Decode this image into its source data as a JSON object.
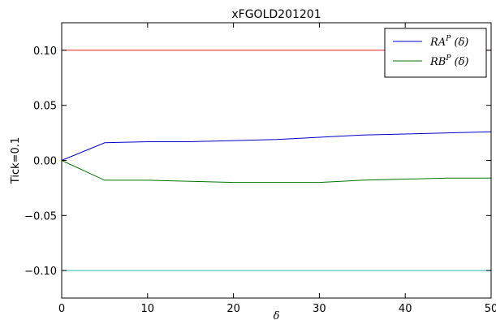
{
  "chart_data": {
    "type": "line",
    "title": "xFGOLD201201",
    "xlabel": "δ",
    "ylabel": "Tick=0.1",
    "xlim": [
      0,
      50
    ],
    "ylim": [
      -0.125,
      0.125
    ],
    "xticks": [
      0,
      10,
      20,
      30,
      40,
      50
    ],
    "xtick_labels": [
      "0",
      "10",
      "20",
      "30",
      "40",
      "50"
    ],
    "yticks": [
      0.1,
      0.05,
      0.0,
      -0.05,
      -0.1
    ],
    "ytick_labels": [
      "0.10",
      "0.05",
      "0.00",
      "−0.05",
      "−0.10"
    ],
    "grid": false,
    "legend_position": "top-right",
    "series": [
      {
        "name": "RA^P (δ)",
        "legend_label": {
          "base": "RA",
          "sup": "P",
          "arg": " (δ)"
        },
        "color": "#0000cc",
        "in_legend": true,
        "x": [
          0,
          5,
          10,
          15,
          20,
          25,
          30,
          35,
          40,
          45,
          50
        ],
        "y": [
          0.0,
          0.016,
          0.017,
          0.017,
          0.018,
          0.019,
          0.021,
          0.023,
          0.024,
          0.025,
          0.026
        ]
      },
      {
        "name": "RB^P (δ)",
        "legend_label": {
          "base": "RB",
          "sup": "P",
          "arg": " (δ)"
        },
        "color": "#007700",
        "in_legend": true,
        "x": [
          0,
          5,
          10,
          15,
          20,
          25,
          30,
          35,
          40,
          45,
          50
        ],
        "y": [
          0.0,
          -0.018,
          -0.018,
          -0.019,
          -0.02,
          -0.02,
          -0.02,
          -0.018,
          -0.017,
          -0.016,
          -0.016
        ]
      },
      {
        "color": "#ee2222",
        "in_legend": false,
        "x": [
          0,
          50
        ],
        "y": [
          0.1,
          0.1
        ]
      },
      {
        "color": "#22bbbb",
        "in_legend": false,
        "x": [
          0,
          50
        ],
        "y": [
          -0.1,
          -0.1
        ]
      }
    ]
  }
}
